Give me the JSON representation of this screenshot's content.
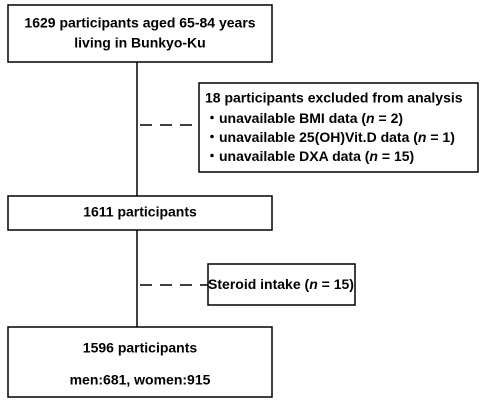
{
  "boxes": {
    "start": {
      "lines": [
        "1629 participants aged 65-84 years",
        "living in Bunkyo-Ku"
      ]
    },
    "excluded": {
      "title": "18 participants excluded from analysis",
      "items": [
        [
          "・unavailable BMI data (",
          "n",
          " = 2)"
        ],
        [
          "・unavailable 25(OH)Vit.D data (",
          "n",
          " = 1)"
        ],
        [
          "・unavailable DXA data (",
          "n",
          " = 15)"
        ]
      ]
    },
    "middle": {
      "lines": [
        "1611 participants"
      ]
    },
    "steroid": {
      "parts": [
        "Steroid intake (",
        "n",
        " = 15)"
      ]
    },
    "final": {
      "lines": [
        "1596 participants",
        "men:681, women:915"
      ]
    }
  }
}
